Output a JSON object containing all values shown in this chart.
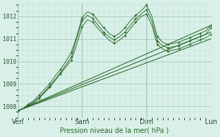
{
  "bg_color": "#d8f0e8",
  "grid_color_major": "#a0c8b8",
  "grid_color_minor": "#c0ddd0",
  "line_color_dark": "#2d6a2d",
  "line_color_mid": "#3d7a3d",
  "xlabel": "Pression niveau de la mer( hPa )",
  "ylim": [
    1007.5,
    1012.6
  ],
  "xlim": [
    0,
    216
  ],
  "yticks": [
    1008,
    1009,
    1010,
    1011,
    1012
  ],
  "day_labels": [
    "Ven",
    "Sam",
    "Dim",
    "Lun"
  ],
  "day_positions": [
    0,
    72,
    144,
    216
  ],
  "smooth_lines": [
    {
      "x": [
        0,
        216
      ],
      "y": [
        1007.8,
        1011.0
      ]
    },
    {
      "x": [
        0,
        216
      ],
      "y": [
        1007.8,
        1011.3
      ]
    },
    {
      "x": [
        0,
        216
      ],
      "y": [
        1007.8,
        1011.6
      ]
    }
  ],
  "detail_lines": [
    {
      "pts": [
        [
          0,
          1007.8
        ],
        [
          6,
          1007.9
        ],
        [
          12,
          1008.05
        ],
        [
          18,
          1008.2
        ],
        [
          24,
          1008.4
        ],
        [
          30,
          1008.65
        ],
        [
          36,
          1008.9
        ],
        [
          42,
          1009.2
        ],
        [
          48,
          1009.5
        ],
        [
          54,
          1009.85
        ],
        [
          60,
          1010.2
        ],
        [
          66,
          1011.0
        ],
        [
          72,
          1011.8
        ],
        [
          78,
          1012.05
        ],
        [
          84,
          1011.9
        ],
        [
          90,
          1011.6
        ],
        [
          96,
          1011.3
        ],
        [
          102,
          1011.1
        ],
        [
          108,
          1010.95
        ],
        [
          114,
          1011.1
        ],
        [
          120,
          1011.3
        ],
        [
          126,
          1011.6
        ],
        [
          132,
          1011.9
        ],
        [
          138,
          1012.1
        ],
        [
          144,
          1012.3
        ],
        [
          150,
          1011.8
        ],
        [
          156,
          1010.9
        ],
        [
          162,
          1010.7
        ],
        [
          168,
          1010.6
        ],
        [
          174,
          1010.65
        ],
        [
          180,
          1010.7
        ],
        [
          186,
          1010.8
        ],
        [
          192,
          1010.9
        ],
        [
          198,
          1011.0
        ],
        [
          204,
          1011.1
        ],
        [
          210,
          1011.2
        ],
        [
          216,
          1011.5
        ]
      ]
    },
    {
      "pts": [
        [
          0,
          1007.8
        ],
        [
          6,
          1007.9
        ],
        [
          12,
          1008.05
        ],
        [
          18,
          1008.15
        ],
        [
          24,
          1008.35
        ],
        [
          30,
          1008.6
        ],
        [
          36,
          1008.85
        ],
        [
          42,
          1009.15
        ],
        [
          48,
          1009.45
        ],
        [
          54,
          1009.75
        ],
        [
          60,
          1010.05
        ],
        [
          66,
          1010.75
        ],
        [
          72,
          1011.55
        ],
        [
          78,
          1011.85
        ],
        [
          84,
          1011.75
        ],
        [
          90,
          1011.45
        ],
        [
          96,
          1011.2
        ],
        [
          102,
          1010.95
        ],
        [
          108,
          1010.8
        ],
        [
          114,
          1010.95
        ],
        [
          120,
          1011.15
        ],
        [
          126,
          1011.45
        ],
        [
          132,
          1011.75
        ],
        [
          138,
          1012.0
        ],
        [
          144,
          1012.1
        ],
        [
          150,
          1011.6
        ],
        [
          156,
          1010.75
        ],
        [
          162,
          1010.55
        ],
        [
          168,
          1010.45
        ],
        [
          174,
          1010.5
        ],
        [
          180,
          1010.55
        ],
        [
          186,
          1010.65
        ],
        [
          192,
          1010.75
        ],
        [
          198,
          1010.85
        ],
        [
          204,
          1010.95
        ],
        [
          210,
          1011.05
        ],
        [
          216,
          1011.2
        ]
      ]
    },
    {
      "pts": [
        [
          0,
          1007.8
        ],
        [
          6,
          1007.9
        ],
        [
          12,
          1008.1
        ],
        [
          18,
          1008.25
        ],
        [
          24,
          1008.5
        ],
        [
          30,
          1008.75
        ],
        [
          36,
          1009.0
        ],
        [
          42,
          1009.35
        ],
        [
          48,
          1009.65
        ],
        [
          54,
          1010.0
        ],
        [
          60,
          1010.4
        ],
        [
          66,
          1011.1
        ],
        [
          72,
          1011.95
        ],
        [
          78,
          1012.2
        ],
        [
          84,
          1012.1
        ],
        [
          90,
          1011.8
        ],
        [
          96,
          1011.5
        ],
        [
          102,
          1011.25
        ],
        [
          108,
          1011.1
        ],
        [
          114,
          1011.25
        ],
        [
          120,
          1011.5
        ],
        [
          126,
          1011.8
        ],
        [
          132,
          1012.05
        ],
        [
          138,
          1012.25
        ],
        [
          144,
          1012.5
        ],
        [
          150,
          1012.0
        ],
        [
          156,
          1011.1
        ],
        [
          162,
          1010.85
        ],
        [
          168,
          1010.75
        ],
        [
          174,
          1010.8
        ],
        [
          180,
          1010.85
        ],
        [
          186,
          1010.95
        ],
        [
          192,
          1011.05
        ],
        [
          198,
          1011.15
        ],
        [
          204,
          1011.25
        ],
        [
          210,
          1011.35
        ],
        [
          216,
          1011.6
        ]
      ]
    }
  ]
}
